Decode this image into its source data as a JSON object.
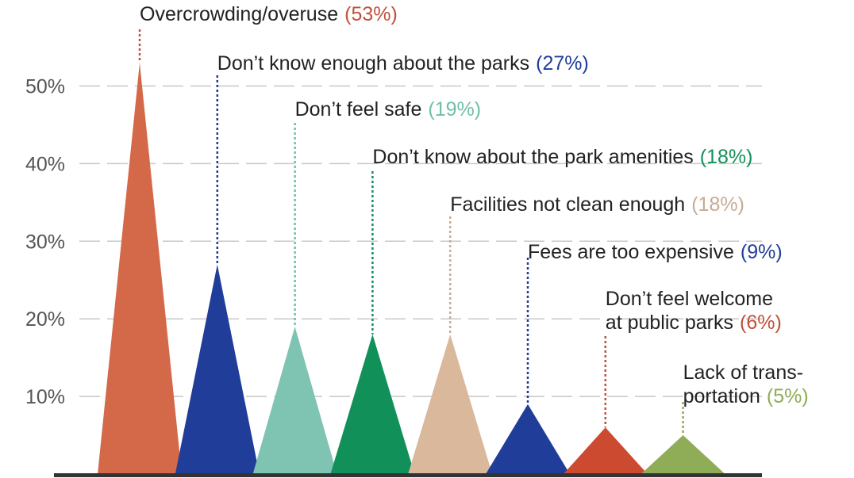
{
  "chart_data": {
    "type": "area",
    "title": "",
    "xlabel": "",
    "ylabel": "",
    "ylim": [
      0,
      55
    ],
    "y_ticks": [
      {
        "value": 10,
        "label": "10%"
      },
      {
        "value": 20,
        "label": "20%"
      },
      {
        "value": 30,
        "label": "30%"
      },
      {
        "value": 40,
        "label": "40%"
      },
      {
        "value": 50,
        "label": "50%"
      }
    ],
    "grid": "dashed horizontal",
    "legend": "none",
    "categories": [
      {
        "lines": [
          "Overcrowding/overuse"
        ],
        "value": 53,
        "value_label": "(53%)",
        "color": "#d4694a",
        "label_color": "#c0503a"
      },
      {
        "lines": [
          "Don’t know enough about the parks"
        ],
        "value": 27,
        "value_label": "(27%)",
        "color": "#1f3d99",
        "label_color": "#1f3d99"
      },
      {
        "lines": [
          "Don’t feel safe"
        ],
        "value": 19,
        "value_label": "(19%)",
        "color": "#7fc4b3",
        "label_color": "#6fbfa9"
      },
      {
        "lines": [
          "Don’t know about the park amenities"
        ],
        "value": 18,
        "value_label": "(18%)",
        "color": "#12905a",
        "label_color": "#12905a"
      },
      {
        "lines": [
          "Facilities not clean enough"
        ],
        "value": 18,
        "value_label": "(18%)",
        "color": "#d9b89c",
        "label_color": "#c7ab94"
      },
      {
        "lines": [
          "Fees are too expensive"
        ],
        "value": 9,
        "value_label": "(9%)",
        "color": "#1f3d99",
        "label_color": "#1f3d99"
      },
      {
        "lines": [
          "Don’t feel welcome",
          "at public parks"
        ],
        "value": 6,
        "value_label": "(6%)",
        "color": "#cc4a2f",
        "label_color": "#c0503a"
      },
      {
        "lines": [
          "Lack of trans-",
          "portation"
        ],
        "value": 5,
        "value_label": "(5%)",
        "color": "#8fac57",
        "label_color": "#8fac57"
      }
    ]
  }
}
